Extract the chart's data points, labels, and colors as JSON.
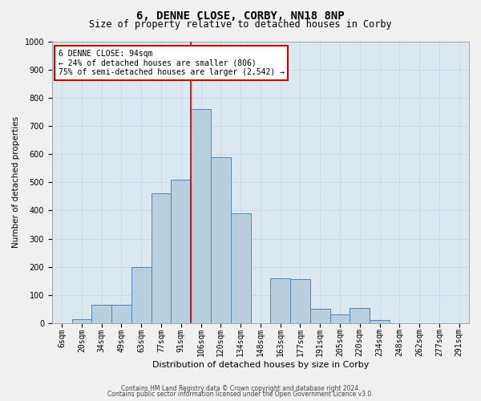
{
  "title": "6, DENNE CLOSE, CORBY, NN18 8NP",
  "subtitle": "Size of property relative to detached houses in Corby",
  "xlabel": "Distribution of detached houses by size in Corby",
  "ylabel": "Number of detached properties",
  "categories": [
    "6sqm",
    "20sqm",
    "34sqm",
    "49sqm",
    "63sqm",
    "77sqm",
    "91sqm",
    "106sqm",
    "120sqm",
    "134sqm",
    "148sqm",
    "163sqm",
    "177sqm",
    "191sqm",
    "205sqm",
    "220sqm",
    "234sqm",
    "248sqm",
    "262sqm",
    "277sqm",
    "291sqm"
  ],
  "values": [
    0,
    15,
    65,
    65,
    200,
    460,
    510,
    760,
    590,
    390,
    0,
    160,
    155,
    50,
    30,
    55,
    10,
    0,
    0,
    0,
    0
  ],
  "bar_color": "#b8cfe0",
  "bar_edge_color": "#4f86b8",
  "vline_x": 6.5,
  "vline_color": "#cc0000",
  "annotation_text": "6 DENNE CLOSE: 94sqm\n← 24% of detached houses are smaller (806)\n75% of semi-detached houses are larger (2,542) →",
  "annotation_box_color": "#ffffff",
  "annotation_box_edge": "#cc0000",
  "ylim": [
    0,
    1000
  ],
  "yticks": [
    0,
    100,
    200,
    300,
    400,
    500,
    600,
    700,
    800,
    900,
    1000
  ],
  "grid_color": "#c8d8e8",
  "bg_color": "#dce8f0",
  "fig_bg_color": "#f0f0f0",
  "footer1": "Contains HM Land Registry data © Crown copyright and database right 2024.",
  "footer2": "Contains public sector information licensed under the Open Government Licence v3.0.",
  "title_fontsize": 10,
  "subtitle_fontsize": 8.5,
  "xlabel_fontsize": 8,
  "ylabel_fontsize": 7.5,
  "tick_fontsize": 7,
  "footer_fontsize": 5.5,
  "ann_fontsize": 7
}
